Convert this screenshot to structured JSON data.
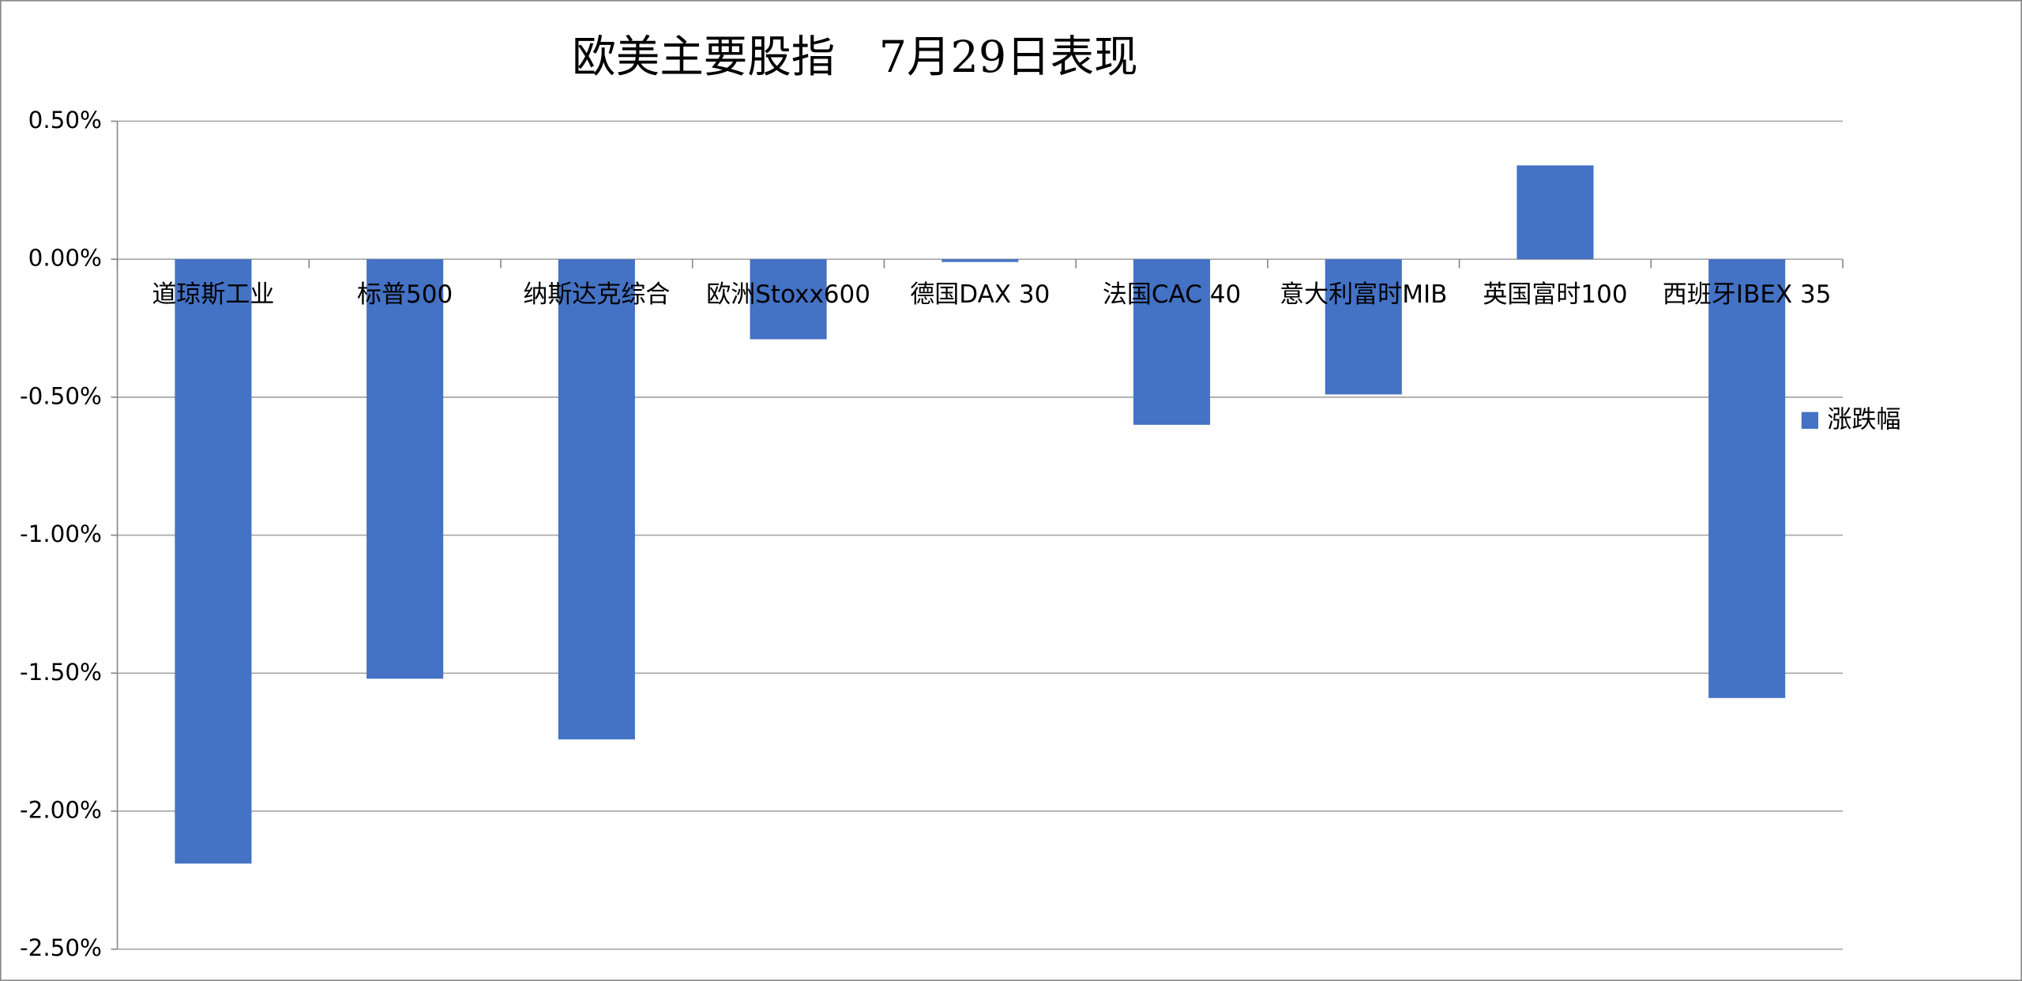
{
  "chart_data": {
    "type": "bar",
    "title": "欧美主要股指　7月29日表现",
    "categories": [
      "道琼斯工业",
      "标普500",
      "纳斯达克综合",
      "欧洲Stoxx600",
      "德国DAX 30",
      "法国CAC 40",
      "意大利富时MIB",
      "英国富时100",
      "西班牙IBEX 35"
    ],
    "series": [
      {
        "name": "涨跌幅",
        "color": "#4472c4",
        "values": [
          -2.19,
          -1.52,
          -1.74,
          -0.29,
          -0.01,
          -0.6,
          -0.49,
          0.34,
          -1.59
        ]
      }
    ],
    "ylim": [
      -2.5,
      0.5
    ],
    "yticks": [
      {
        "value": 0.5,
        "label": "0.50%"
      },
      {
        "value": 0,
        "label": "0.00%"
      },
      {
        "value": -0.5,
        "label": "-0.50%"
      },
      {
        "value": -1,
        "label": "-1.00%"
      },
      {
        "value": -1.5,
        "label": "-1.50%"
      },
      {
        "value": -2,
        "label": "-2.00%"
      },
      {
        "value": -2.5,
        "label": "-2.50%"
      }
    ],
    "grid": true,
    "legend": "right"
  }
}
